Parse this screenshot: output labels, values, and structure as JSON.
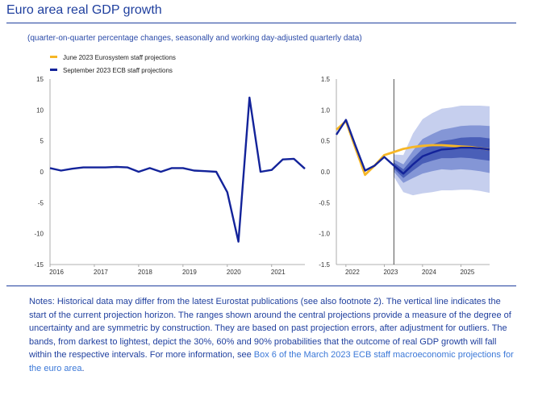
{
  "title": "Euro area real GDP growth",
  "subtitle": "(quarter-on-quarter percentage changes, seasonally and working day-adjusted quarterly data)",
  "notes": {
    "text": "Notes: Historical data may differ from the latest Eurostat publications (see also footnote 2). The vertical line indicates the start of the current projection horizon. The ranges shown around the central projections provide a measure of the degree of uncertainty and are symmetric by construction. They are based on past projection errors, after adjustment for outliers. The bands, from darkest to lightest, depict the 30%, 60% and 90% probabilities that the outcome of real GDP growth will fall within the respective intervals. For more information, see ",
    "link_text": "Box 6 of the March 2023 ECB staff macroeconomic projections for the euro area",
    "end": "."
  },
  "colors": {
    "title": "#1f3f9e",
    "june": "#f6b626",
    "september": "#13239a",
    "band30": "#4a5fb8",
    "band60": "#8496d6",
    "band90": "#c6cfee"
  },
  "chart_data": [
    {
      "type": "line",
      "panel": "left",
      "legend": [
        "June 2023 Eurosystem staff projections",
        "September 2023 ECB staff projections"
      ],
      "ylim": [
        -15,
        15
      ],
      "yticks": [
        15,
        10,
        5,
        0,
        -5,
        -10,
        -15
      ],
      "xlim": [
        2016,
        2021.75
      ],
      "xticks": [
        "2016",
        "2017",
        "2018",
        "2019",
        "2020",
        "2021"
      ],
      "series": [
        {
          "name": "September 2023 ECB staff projections",
          "x": [
            2016.0,
            2016.25,
            2016.5,
            2016.75,
            2017.0,
            2017.25,
            2017.5,
            2017.75,
            2018.0,
            2018.25,
            2018.5,
            2018.75,
            2019.0,
            2019.25,
            2019.5,
            2019.75,
            2020.0,
            2020.25,
            2020.5,
            2020.75,
            2021.0,
            2021.25,
            2021.5,
            2021.75
          ],
          "values": [
            0.6,
            0.2,
            0.5,
            0.7,
            0.7,
            0.7,
            0.8,
            0.7,
            0.0,
            0.6,
            0.0,
            0.6,
            0.6,
            0.2,
            0.1,
            0.0,
            -3.3,
            -11.3,
            12.0,
            0.0,
            0.3,
            2.0,
            2.1,
            0.5
          ]
        }
      ]
    },
    {
      "type": "line",
      "panel": "right",
      "ylim": [
        -1.5,
        1.5
      ],
      "yticks": [
        "1.5",
        "1.0",
        "0.5",
        "0.0",
        "-0.5",
        "-1.0",
        "-1.5"
      ],
      "xlim": [
        2021.75,
        2025.75
      ],
      "xticks": [
        "2022",
        "2023",
        "2024",
        "2025"
      ],
      "projection_start": 2023.25,
      "series": [
        {
          "name": "June 2023 Eurosystem staff projections",
          "x": [
            2021.75,
            2022.0,
            2022.25,
            2022.5,
            2022.75,
            2023.0,
            2023.25,
            2023.5,
            2023.75,
            2024.0,
            2024.25,
            2024.5,
            2024.75,
            2025.0,
            2025.25,
            2025.5,
            2025.75
          ],
          "values": [
            0.68,
            0.82,
            0.38,
            -0.05,
            0.1,
            0.27,
            0.32,
            0.37,
            0.4,
            0.42,
            0.43,
            0.43,
            0.42,
            0.41,
            0.4,
            0.38,
            0.36
          ]
        },
        {
          "name": "September 2023 ECB staff projections",
          "x": [
            2021.75,
            2022.0,
            2022.25,
            2022.5,
            2022.75,
            2023.0,
            2023.25,
            2023.5,
            2023.75,
            2024.0,
            2024.25,
            2024.5,
            2024.75,
            2025.0,
            2025.25,
            2025.5,
            2025.75
          ],
          "values": [
            0.6,
            0.84,
            0.42,
            0.02,
            0.1,
            0.24,
            0.1,
            -0.03,
            0.12,
            0.25,
            0.31,
            0.36,
            0.37,
            0.39,
            0.39,
            0.38,
            0.36
          ]
        }
      ],
      "bands": {
        "x": [
          2023.25,
          2023.5,
          2023.75,
          2024.0,
          2024.25,
          2024.5,
          2024.75,
          2025.0,
          2025.25,
          2025.5,
          2025.75
        ],
        "center": [
          0.1,
          -0.03,
          0.12,
          0.25,
          0.31,
          0.36,
          0.37,
          0.39,
          0.39,
          0.38,
          0.36
        ],
        "half_width_30": [
          0.05,
          0.07,
          0.1,
          0.12,
          0.13,
          0.14,
          0.15,
          0.16,
          0.17,
          0.18,
          0.18
        ],
        "half_width_60": [
          0.1,
          0.15,
          0.22,
          0.28,
          0.3,
          0.32,
          0.34,
          0.35,
          0.36,
          0.37,
          0.38
        ],
        "half_width_90": [
          0.18,
          0.3,
          0.5,
          0.6,
          0.64,
          0.66,
          0.67,
          0.68,
          0.68,
          0.69,
          0.7
        ]
      }
    }
  ]
}
